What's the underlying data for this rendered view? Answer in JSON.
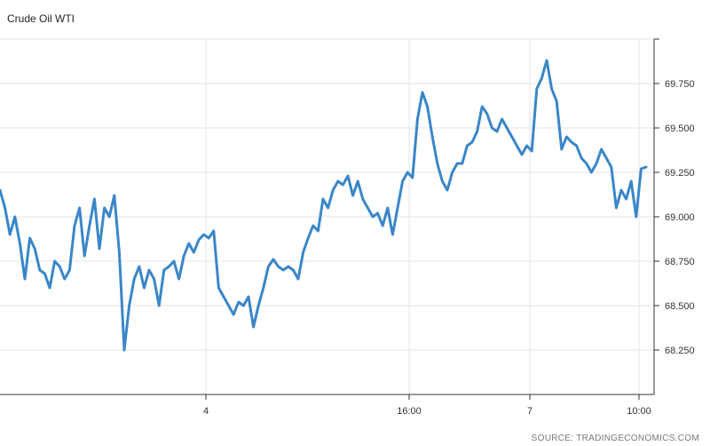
{
  "header": {
    "title": "Crude Oil WTI"
  },
  "footer": {
    "source": "SOURCE: TRADINGECONOMICS.COM"
  },
  "colors": {
    "line": "#3a86c8",
    "grid": "#e6e6e6",
    "axis": "#333333"
  },
  "chart_data": {
    "type": "line",
    "title": "Crude Oil WTI",
    "xlabel": "",
    "ylabel": "",
    "ylim": [
      68.0,
      70.0
    ],
    "y_ticks": [
      68.25,
      68.5,
      68.75,
      69.0,
      69.25,
      69.5,
      69.75
    ],
    "y_tick_labels": [
      "68.250",
      "68.500",
      "68.750",
      "69.000",
      "69.250",
      "69.500",
      "69.750"
    ],
    "x_ticks": [
      "4",
      "16:00",
      "7",
      "10:00"
    ],
    "grid": true,
    "series": [
      {
        "values": [
          69.15,
          69.05,
          68.9,
          69.0,
          68.85,
          68.65,
          68.88,
          68.82,
          68.7,
          68.68,
          68.6,
          68.75,
          68.72,
          68.65,
          68.7,
          68.95,
          69.05,
          68.78,
          68.95,
          69.1,
          68.82,
          69.05,
          69.0,
          69.12,
          68.8,
          68.25,
          68.5,
          68.65,
          68.72,
          68.6,
          68.7,
          68.65,
          68.5,
          68.7,
          68.72,
          68.75,
          68.65,
          68.78,
          68.85,
          68.8,
          68.87,
          68.9,
          68.88,
          68.92,
          68.6,
          68.55,
          68.5,
          68.45,
          68.52,
          68.5,
          68.55,
          68.38,
          68.5,
          68.6,
          68.72,
          68.76,
          68.72,
          68.7,
          68.72,
          68.7,
          68.65,
          68.8,
          68.88,
          68.95,
          68.92,
          69.1,
          69.05,
          69.15,
          69.2,
          69.18,
          69.23,
          69.12,
          69.2,
          69.1,
          69.05,
          69.0,
          69.02,
          68.95,
          69.05,
          68.9,
          69.05,
          69.2,
          69.25,
          69.22,
          69.55,
          69.7,
          69.62,
          69.45,
          69.3,
          69.2,
          69.15,
          69.25,
          69.3,
          69.3,
          69.4,
          69.42,
          69.48,
          69.62,
          69.58,
          69.5,
          69.48,
          69.55,
          69.5,
          69.45,
          69.4,
          69.35,
          69.4,
          69.37,
          69.72,
          69.78,
          69.88,
          69.72,
          69.65,
          69.38,
          69.45,
          69.42,
          69.4,
          69.33,
          69.3,
          69.25,
          69.3,
          69.38,
          69.33,
          69.28,
          69.05,
          69.15,
          69.1,
          69.2,
          69.0,
          69.27,
          69.28
        ]
      }
    ]
  }
}
